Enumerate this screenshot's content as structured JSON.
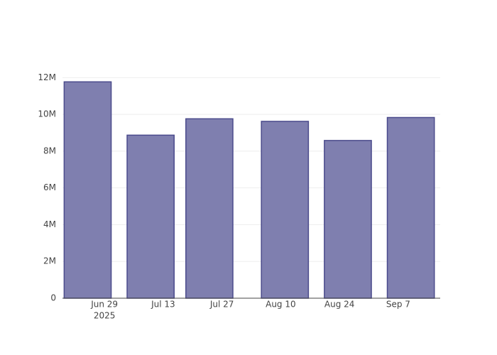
{
  "chart_data": {
    "type": "bar",
    "x": [
      "2025-06-25",
      "2025-07-10",
      "2025-07-24",
      "2025-08-11",
      "2025-08-26",
      "2025-09-10"
    ],
    "values": [
      11770000,
      8870000,
      9760000,
      9620000,
      8580000,
      9830000
    ],
    "color": "#7f7faf",
    "line_color": "#4b4b8c",
    "xlim": [
      "2025-06-19",
      "2025-09-17"
    ],
    "xticks": [
      {
        "value": "2025-06-29",
        "label": "Jun 29"
      },
      {
        "value": "2025-07-13",
        "label": "Jul 13"
      },
      {
        "value": "2025-07-27",
        "label": "Jul 27"
      },
      {
        "value": "2025-08-10",
        "label": "Aug 10"
      },
      {
        "value": "2025-08-24",
        "label": "Aug 24"
      },
      {
        "value": "2025-09-07",
        "label": "Sep 7"
      }
    ],
    "xtick_year": "2025",
    "ylim": [
      0,
      12360000
    ],
    "yticks": [
      0,
      {
        "value": 2000000,
        "label": "2M"
      },
      {
        "value": 4000000,
        "label": "4M"
      },
      {
        "value": 6000000,
        "label": "6M"
      },
      {
        "value": 8000000,
        "label": "8M"
      },
      {
        "value": 10000000,
        "label": "10M"
      },
      {
        "value": 12000000,
        "label": "12M"
      }
    ],
    "grid": true
  }
}
